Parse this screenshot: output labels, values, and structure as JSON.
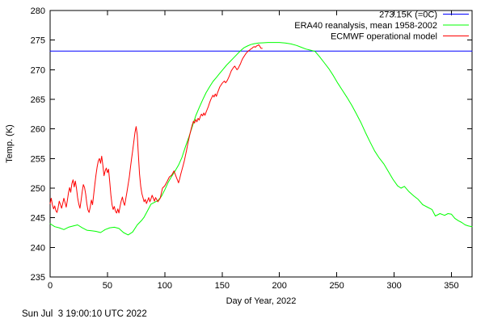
{
  "page": {
    "background": "#ffffff"
  },
  "footer": {
    "timestamp": "Sun Jul  3 19:00:10 UTC 2022"
  },
  "chart_data": {
    "type": "line",
    "title": "",
    "xlabel": "Day of Year, 2022",
    "ylabel": "Temp. (K)",
    "xlim": [
      0,
      368
    ],
    "ylim": [
      235,
      280
    ],
    "xticks": [
      0,
      50,
      100,
      150,
      200,
      250,
      300,
      350
    ],
    "yticks": [
      235,
      240,
      245,
      250,
      255,
      260,
      265,
      270,
      275,
      280
    ],
    "grid": false,
    "legend_position": "top-right-inside",
    "axis_color": "#000000",
    "series": [
      {
        "id": "refline-273k",
        "name": "273.15K (=0C)",
        "color": "#0000ff",
        "type": "hline",
        "value": 273.15
      },
      {
        "id": "era40-line",
        "name": "ERA40 reanalysis, mean 1958-2002",
        "color": "#00ff00",
        "type": "line",
        "points": [
          [
            0,
            244.0
          ],
          [
            4,
            243.5
          ],
          [
            8,
            243.3
          ],
          [
            12,
            243.0
          ],
          [
            16,
            243.4
          ],
          [
            20,
            243.6
          ],
          [
            24,
            243.8
          ],
          [
            28,
            243.3
          ],
          [
            32,
            242.9
          ],
          [
            36,
            242.8
          ],
          [
            40,
            242.7
          ],
          [
            44,
            242.5
          ],
          [
            48,
            243.0
          ],
          [
            52,
            243.3
          ],
          [
            56,
            243.4
          ],
          [
            60,
            243.2
          ],
          [
            64,
            242.5
          ],
          [
            68,
            242.1
          ],
          [
            72,
            242.6
          ],
          [
            76,
            243.8
          ],
          [
            80,
            244.6
          ],
          [
            82,
            245.1
          ],
          [
            85,
            246.2
          ],
          [
            88,
            247.3
          ],
          [
            91,
            247.6
          ],
          [
            94,
            247.9
          ],
          [
            97,
            248.6
          ],
          [
            100,
            249.7
          ],
          [
            103,
            251.0
          ],
          [
            106,
            252.0
          ],
          [
            109,
            252.9
          ],
          [
            112,
            253.9
          ],
          [
            115,
            255.2
          ],
          [
            118,
            257.0
          ],
          [
            121,
            258.6
          ],
          [
            124,
            260.4
          ],
          [
            127,
            262.2
          ],
          [
            130,
            263.6
          ],
          [
            133,
            264.9
          ],
          [
            136,
            266.1
          ],
          [
            139,
            267.1
          ],
          [
            142,
            268.0
          ],
          [
            145,
            268.7
          ],
          [
            148,
            269.4
          ],
          [
            151,
            270.1
          ],
          [
            154,
            270.8
          ],
          [
            157,
            271.4
          ],
          [
            160,
            272.0
          ],
          [
            163,
            272.6
          ],
          [
            166,
            273.2
          ],
          [
            169,
            273.7
          ],
          [
            172,
            274.0
          ],
          [
            175,
            274.25
          ],
          [
            178,
            274.4
          ],
          [
            182,
            274.5
          ],
          [
            186,
            274.55
          ],
          [
            190,
            274.6
          ],
          [
            195,
            274.6
          ],
          [
            200,
            274.6
          ],
          [
            205,
            274.5
          ],
          [
            210,
            274.35
          ],
          [
            215,
            274.1
          ],
          [
            219,
            273.8
          ],
          [
            223,
            273.5
          ],
          [
            227,
            273.3
          ],
          [
            231,
            273.1
          ],
          [
            235,
            272.2
          ],
          [
            239,
            271.2
          ],
          [
            243,
            270.2
          ],
          [
            247,
            269.0
          ],
          [
            251,
            267.7
          ],
          [
            255,
            266.5
          ],
          [
            259,
            265.3
          ],
          [
            263,
            264.0
          ],
          [
            267,
            262.6
          ],
          [
            271,
            261.1
          ],
          [
            275,
            259.4
          ],
          [
            279,
            257.8
          ],
          [
            283,
            256.3
          ],
          [
            287,
            255.1
          ],
          [
            291,
            254.1
          ],
          [
            295,
            252.8
          ],
          [
            299,
            251.5
          ],
          [
            303,
            250.4
          ],
          [
            306,
            250.0
          ],
          [
            309,
            250.3
          ],
          [
            313,
            249.4
          ],
          [
            317,
            248.7
          ],
          [
            321,
            248.1
          ],
          [
            325,
            247.2
          ],
          [
            329,
            246.8
          ],
          [
            333,
            246.4
          ],
          [
            336,
            245.3
          ],
          [
            340,
            245.7
          ],
          [
            344,
            245.4
          ],
          [
            347,
            245.7
          ],
          [
            350,
            245.6
          ],
          [
            353,
            244.9
          ],
          [
            356,
            244.5
          ],
          [
            359,
            244.2
          ],
          [
            362,
            243.8
          ],
          [
            365,
            243.6
          ],
          [
            368,
            243.5
          ]
        ]
      },
      {
        "id": "ecmwf-line",
        "name": "ECMWF operational model",
        "color": "#ff0000",
        "type": "line",
        "points": [
          [
            0,
            247.4
          ],
          [
            1,
            248.3
          ],
          [
            2,
            247.2
          ],
          [
            3,
            246.5
          ],
          [
            4,
            247.0
          ],
          [
            5,
            246.2
          ],
          [
            6,
            245.9
          ],
          [
            7,
            246.7
          ],
          [
            8,
            247.8
          ],
          [
            9,
            247.2
          ],
          [
            10,
            246.6
          ],
          [
            11,
            247.4
          ],
          [
            12,
            248.3
          ],
          [
            13,
            247.6
          ],
          [
            14,
            246.8
          ],
          [
            15,
            247.9
          ],
          [
            16,
            249.2
          ],
          [
            17,
            250.1
          ],
          [
            18,
            249.3
          ],
          [
            19,
            250.8
          ],
          [
            20,
            251.4
          ],
          [
            21,
            250.2
          ],
          [
            22,
            251.2
          ],
          [
            23,
            250.0
          ],
          [
            24,
            248.4
          ],
          [
            25,
            247.3
          ],
          [
            26,
            246.6
          ],
          [
            27,
            247.9
          ],
          [
            28,
            249.4
          ],
          [
            29,
            250.6
          ],
          [
            30,
            250.1
          ],
          [
            31,
            249.0
          ],
          [
            32,
            247.4
          ],
          [
            33,
            246.3
          ],
          [
            34,
            245.9
          ],
          [
            35,
            246.8
          ],
          [
            36,
            248.0
          ],
          [
            37,
            247.2
          ],
          [
            38,
            248.9
          ],
          [
            39,
            250.6
          ],
          [
            40,
            252.2
          ],
          [
            41,
            253.6
          ],
          [
            42,
            254.6
          ],
          [
            43,
            255.0
          ],
          [
            44,
            254.2
          ],
          [
            45,
            255.4
          ],
          [
            46,
            253.8
          ],
          [
            47,
            252.1
          ],
          [
            48,
            252.9
          ],
          [
            49,
            253.4
          ],
          [
            50,
            252.6
          ],
          [
            51,
            253.2
          ],
          [
            52,
            251.0
          ],
          [
            53,
            248.8
          ],
          [
            54,
            247.2
          ],
          [
            55,
            246.4
          ],
          [
            56,
            246.9
          ],
          [
            57,
            246.1
          ],
          [
            58,
            245.8
          ],
          [
            59,
            246.5
          ],
          [
            60,
            245.8
          ],
          [
            61,
            246.9
          ],
          [
            62,
            247.8
          ],
          [
            63,
            248.5
          ],
          [
            64,
            247.6
          ],
          [
            65,
            247.1
          ],
          [
            66,
            248.2
          ],
          [
            67,
            249.3
          ],
          [
            68,
            250.6
          ],
          [
            69,
            251.8
          ],
          [
            70,
            253.4
          ],
          [
            71,
            254.9
          ],
          [
            72,
            256.3
          ],
          [
            73,
            257.8
          ],
          [
            74,
            259.4
          ],
          [
            75,
            260.4
          ],
          [
            76,
            259.0
          ],
          [
            77,
            255.6
          ],
          [
            78,
            252.4
          ],
          [
            79,
            250.3
          ],
          [
            80,
            249.1
          ],
          [
            81,
            248.4
          ],
          [
            82,
            247.7
          ],
          [
            83,
            248.1
          ],
          [
            84,
            247.4
          ],
          [
            85,
            247.9
          ],
          [
            86,
            248.4
          ],
          [
            87,
            247.7
          ],
          [
            88,
            248.2
          ],
          [
            89,
            248.8
          ],
          [
            90,
            248.3
          ],
          [
            91,
            247.8
          ],
          [
            92,
            248.4
          ],
          [
            94,
            247.7
          ],
          [
            96,
            248.3
          ],
          [
            98,
            250.0
          ],
          [
            100,
            250.4
          ],
          [
            102,
            251.1
          ],
          [
            104,
            251.9
          ],
          [
            106,
            252.2
          ],
          [
            108,
            252.9
          ],
          [
            110,
            251.9
          ],
          [
            112,
            250.9
          ],
          [
            113,
            251.6
          ],
          [
            114,
            252.4
          ],
          [
            115,
            253.1
          ],
          [
            116,
            253.8
          ],
          [
            117,
            254.6
          ],
          [
            118,
            255.5
          ],
          [
            119,
            256.4
          ],
          [
            120,
            257.4
          ],
          [
            121,
            258.3
          ],
          [
            122,
            259.2
          ],
          [
            123,
            260.0
          ],
          [
            124,
            260.7
          ],
          [
            125,
            261.3
          ],
          [
            126,
            261.0
          ],
          [
            127,
            261.6
          ],
          [
            128,
            261.2
          ],
          [
            129,
            261.8
          ],
          [
            130,
            261.5
          ],
          [
            131,
            262.1
          ],
          [
            132,
            262.5
          ],
          [
            133,
            262.2
          ],
          [
            134,
            262.7
          ],
          [
            135,
            262.3
          ],
          [
            136,
            262.8
          ],
          [
            137,
            263.3
          ],
          [
            138,
            263.8
          ],
          [
            139,
            264.4
          ],
          [
            140,
            264.9
          ],
          [
            141,
            265.3
          ],
          [
            142,
            265.7
          ],
          [
            143,
            265.4
          ],
          [
            144,
            265.9
          ],
          [
            145,
            265.5
          ],
          [
            146,
            266.1
          ],
          [
            147,
            266.6
          ],
          [
            148,
            267.1
          ],
          [
            149,
            267.4
          ],
          [
            150,
            267.7
          ],
          [
            151,
            267.9
          ],
          [
            152,
            268.1
          ],
          [
            153,
            267.8
          ],
          [
            154,
            268.0
          ],
          [
            155,
            268.4
          ],
          [
            156,
            268.8
          ],
          [
            157,
            269.3
          ],
          [
            158,
            269.8
          ],
          [
            159,
            270.1
          ],
          [
            160,
            270.4
          ],
          [
            161,
            270.6
          ],
          [
            162,
            270.3
          ],
          [
            163,
            270.0
          ],
          [
            164,
            270.2
          ],
          [
            165,
            270.6
          ],
          [
            166,
            271.0
          ],
          [
            167,
            271.5
          ],
          [
            168,
            271.9
          ],
          [
            169,
            272.2
          ],
          [
            170,
            272.5
          ],
          [
            171,
            272.8
          ],
          [
            172,
            273.0
          ],
          [
            173,
            273.2
          ],
          [
            174,
            273.3
          ],
          [
            175,
            273.5
          ],
          [
            176,
            273.6
          ],
          [
            177,
            273.8
          ],
          [
            178,
            273.9
          ],
          [
            179,
            273.8
          ],
          [
            180,
            274.0
          ],
          [
            181,
            274.1
          ],
          [
            182,
            274.2
          ],
          [
            183,
            273.9
          ],
          [
            184,
            273.6
          ],
          [
            185,
            273.6
          ]
        ]
      }
    ]
  }
}
